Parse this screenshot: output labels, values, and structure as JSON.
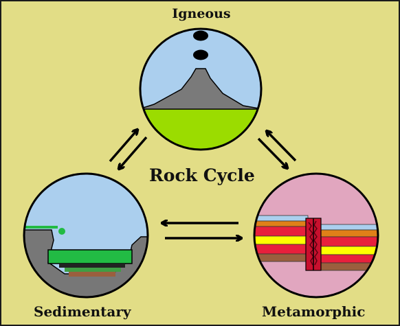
{
  "title": "Rock Cycle",
  "rocks": {
    "igneous": "Igneous",
    "sedimentary": "Sedimentary",
    "metamorphic": "Metamorphic"
  },
  "colors": {
    "background": "#e2dd86",
    "sky": "#abcfee",
    "ground_green": "#9bdc00",
    "rock_gray": "#777777",
    "metamorphic_pink": "#e1a6bf",
    "vegetation_green": "#22bb44"
  }
}
